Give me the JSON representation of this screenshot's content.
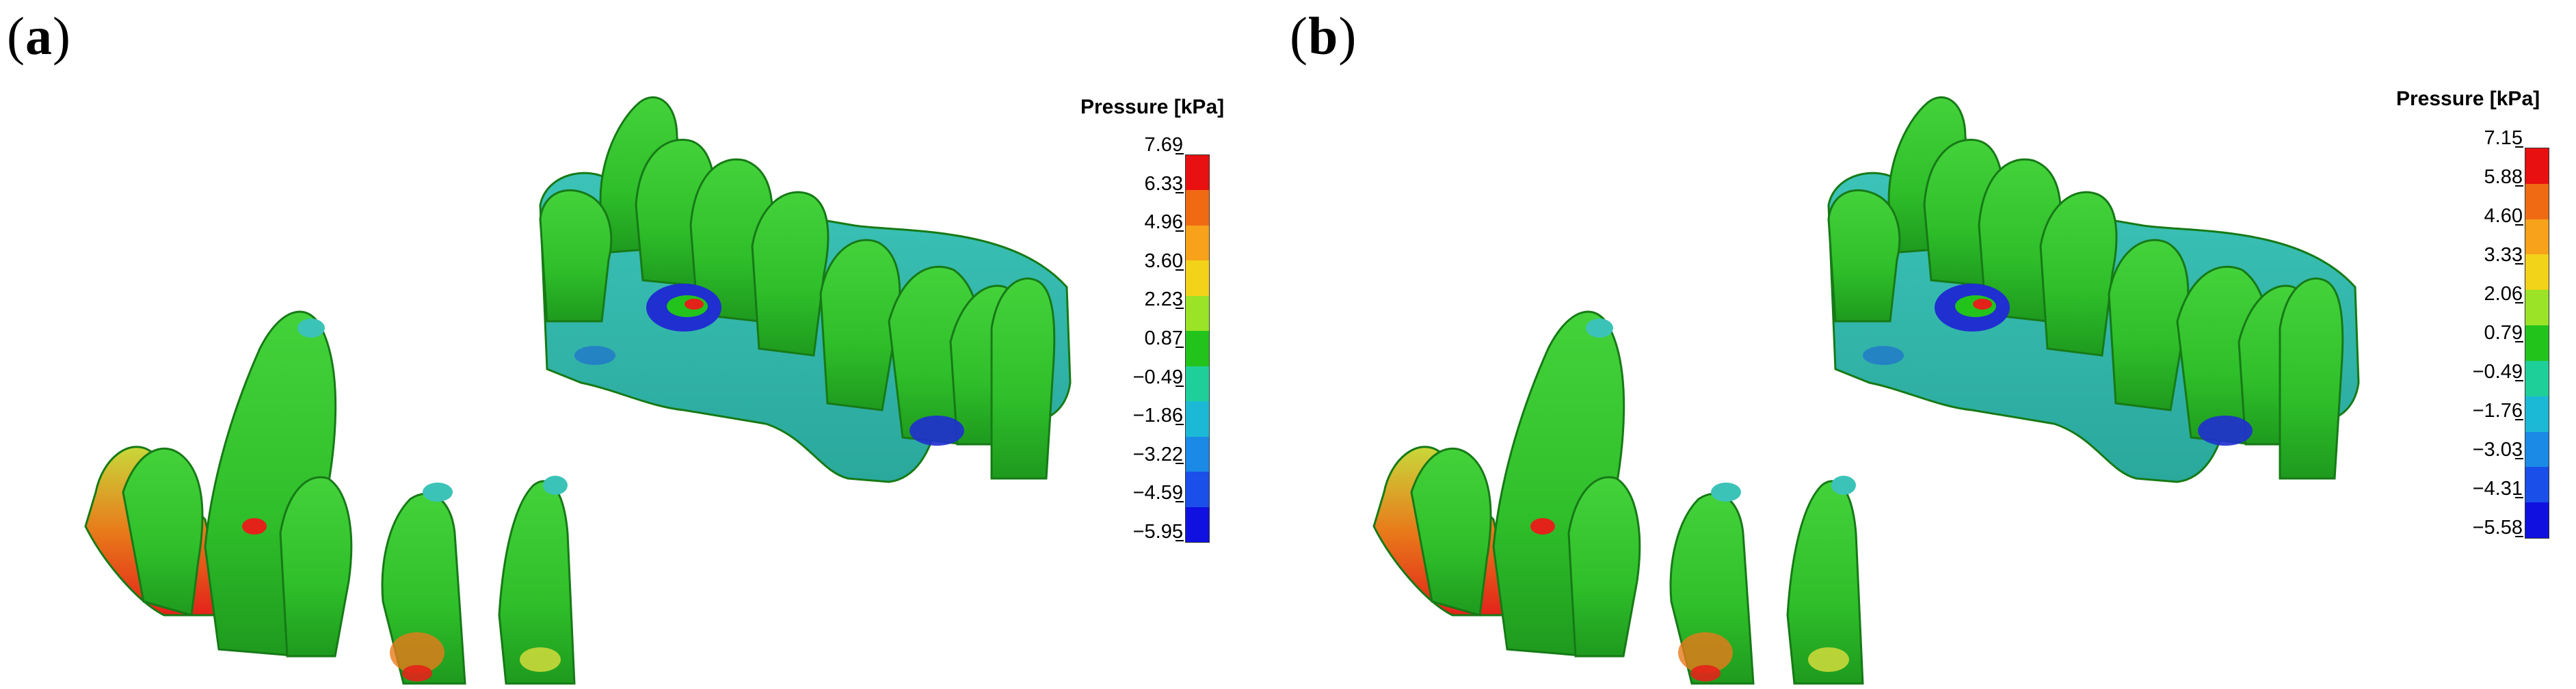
{
  "panels": [
    {
      "label_open": "(",
      "label_letter": "a",
      "label_close": ")",
      "legend": {
        "title": "Pressure [kPa]",
        "ticks": [
          "7.69",
          "6.33",
          "4.96",
          "3.60",
          "2.23",
          "0.87",
          "−0.49",
          "−1.86",
          "−3.22",
          "−4.59",
          "−5.95"
        ]
      }
    },
    {
      "label_open": "(",
      "label_letter": "b",
      "label_close": ")",
      "legend": {
        "title": "Pressure [kPa]",
        "ticks": [
          "7.15",
          "5.88",
          "4.60",
          "3.33",
          "2.06",
          "0.79",
          "−0.49",
          "−1.76",
          "−3.03",
          "−4.31",
          "−5.58"
        ]
      }
    }
  ],
  "colormap": [
    "#e81010",
    "#f06a14",
    "#f7a21a",
    "#f3d21a",
    "#9be327",
    "#22c41c",
    "#1fcf9a",
    "#1cb9d6",
    "#1a8ae6",
    "#1a4fe9",
    "#1010e0"
  ],
  "colors": {
    "tooth_green": "#2fbf2a",
    "tooth_dark": "#1e9a1e",
    "tooth_cyan": "#3cc3b8",
    "hot_red": "#e3221a",
    "hot_orange": "#e87b1a",
    "hot_yellow": "#c9d83a",
    "cold_blue": "#1f2fd0"
  }
}
